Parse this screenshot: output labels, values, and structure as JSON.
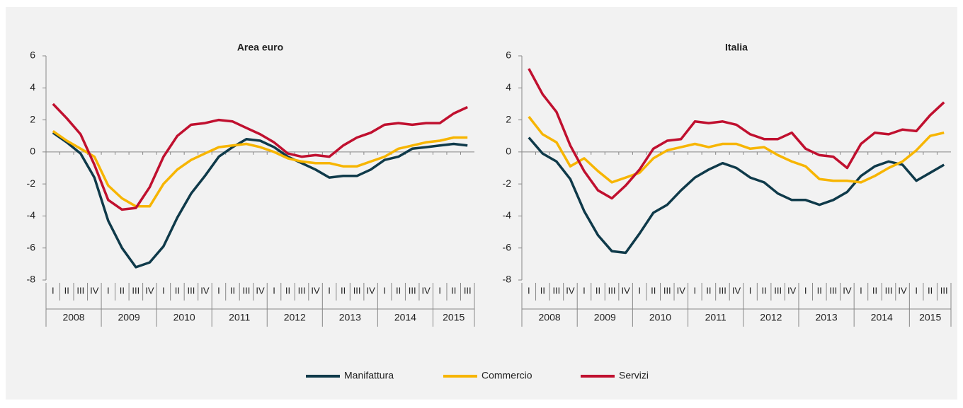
{
  "chart_data": [
    {
      "type": "line",
      "title": "Area euro",
      "categories": [
        "I",
        "II",
        "III",
        "IV",
        "I",
        "II",
        "III",
        "IV",
        "I",
        "II",
        "III",
        "IV",
        "I",
        "II",
        "III",
        "IV",
        "I",
        "II",
        "III",
        "IV",
        "I",
        "II",
        "III",
        "IV",
        "I",
        "II",
        "III",
        "IV",
        "I",
        "II",
        "III"
      ],
      "years": [
        "2008",
        "2009",
        "2010",
        "2011",
        "2012",
        "2013",
        "2014",
        "2015"
      ],
      "ylim": [
        -8,
        6
      ],
      "yticks": [
        -8,
        -6,
        -4,
        -2,
        0,
        2,
        4,
        6
      ],
      "series": [
        {
          "name": "Manifattura",
          "color": "#0f3a4a",
          "values": [
            1.2,
            0.6,
            -0.1,
            -1.6,
            -4.3,
            -6.0,
            -7.2,
            -6.9,
            -5.9,
            -4.1,
            -2.6,
            -1.5,
            -0.3,
            0.3,
            0.8,
            0.7,
            0.3,
            -0.3,
            -0.7,
            -1.1,
            -1.6,
            -1.5,
            -1.5,
            -1.1,
            -0.5,
            -0.3,
            0.2,
            0.3,
            0.4,
            0.5,
            0.4
          ]
        },
        {
          "name": "Commercio",
          "color": "#f7b500",
          "values": [
            1.3,
            0.7,
            0.2,
            -0.3,
            -2.1,
            -2.9,
            -3.4,
            -3.4,
            -2.0,
            -1.1,
            -0.5,
            -0.1,
            0.3,
            0.4,
            0.5,
            0.3,
            0.0,
            -0.4,
            -0.6,
            -0.7,
            -0.7,
            -0.9,
            -0.9,
            -0.6,
            -0.3,
            0.2,
            0.4,
            0.6,
            0.7,
            0.9,
            0.9
          ]
        },
        {
          "name": "Servizi",
          "color": "#c0102f",
          "values": [
            3.0,
            2.1,
            1.1,
            -0.8,
            -3.0,
            -3.6,
            -3.5,
            -2.2,
            -0.3,
            1.0,
            1.7,
            1.8,
            2.0,
            1.9,
            1.5,
            1.1,
            0.6,
            -0.1,
            -0.3,
            -0.2,
            -0.3,
            0.4,
            0.9,
            1.2,
            1.7,
            1.8,
            1.7,
            1.8,
            1.8,
            2.4,
            2.8
          ]
        }
      ]
    },
    {
      "type": "line",
      "title": "Italia",
      "categories": [
        "I",
        "II",
        "III",
        "IV",
        "I",
        "II",
        "III",
        "IV",
        "I",
        "II",
        "III",
        "IV",
        "I",
        "II",
        "III",
        "IV",
        "I",
        "II",
        "III",
        "IV",
        "I",
        "II",
        "III",
        "IV",
        "I",
        "II",
        "III",
        "IV",
        "I",
        "II",
        "III"
      ],
      "years": [
        "2008",
        "2009",
        "2010",
        "2011",
        "2012",
        "2013",
        "2014",
        "2015"
      ],
      "ylim": [
        -8,
        6
      ],
      "yticks": [
        -8,
        -6,
        -4,
        -2,
        0,
        2,
        4,
        6
      ],
      "series": [
        {
          "color": "#0f3a4a",
          "values": [
            0.9,
            -0.1,
            -0.6,
            -1.7,
            -3.7,
            -5.2,
            -6.2,
            -6.3,
            -5.1,
            -3.8,
            -3.3,
            -2.4,
            -1.6,
            -1.1,
            -0.7,
            -1.0,
            -1.6,
            -1.9,
            -2.6,
            -3.0,
            -3.0,
            -3.3,
            -3.0,
            -2.5,
            -1.5,
            -0.9,
            -0.6,
            -0.8,
            -1.8,
            -1.3,
            -0.8
          ]
        },
        {
          "color": "#f7b500",
          "values": [
            2.2,
            1.1,
            0.6,
            -0.9,
            -0.4,
            -1.2,
            -1.9,
            -1.6,
            -1.3,
            -0.4,
            0.1,
            0.3,
            0.5,
            0.3,
            0.5,
            0.5,
            0.2,
            0.3,
            -0.2,
            -0.6,
            -0.9,
            -1.7,
            -1.8,
            -1.8,
            -1.9,
            -1.5,
            -1.0,
            -0.6,
            0.1,
            1.0,
            1.2
          ]
        },
        {
          "color": "#c0102f",
          "values": [
            5.2,
            3.6,
            2.5,
            0.4,
            -1.2,
            -2.4,
            -2.9,
            -2.1,
            -1.1,
            0.2,
            0.7,
            0.8,
            1.9,
            1.8,
            1.9,
            1.7,
            1.1,
            0.8,
            0.8,
            1.2,
            0.2,
            -0.2,
            -0.3,
            -1.0,
            0.5,
            1.2,
            1.1,
            1.4,
            1.3,
            2.3,
            3.1
          ]
        }
      ]
    }
  ]
}
